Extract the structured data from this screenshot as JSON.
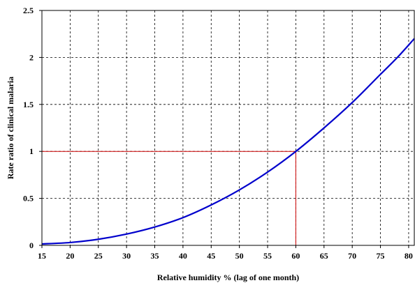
{
  "chart_data": {
    "type": "line",
    "title": "",
    "xlabel": "Relative humidity % (lag of one month)",
    "ylabel": "Rate ratio of clinical malaria",
    "xlim": [
      15,
      81
    ],
    "ylim": [
      0,
      2.5
    ],
    "x_ticks": [
      15,
      20,
      25,
      30,
      35,
      40,
      45,
      50,
      55,
      60,
      65,
      70,
      75,
      80
    ],
    "y_ticks": [
      0,
      0.5,
      1,
      1.5,
      2,
      2.5
    ],
    "x_tick_labels": [
      "15",
      "20",
      "25",
      "30",
      "35",
      "40",
      "45",
      "50",
      "55",
      "60",
      "65",
      "70",
      "75",
      "80"
    ],
    "y_tick_labels": [
      "0",
      "0.5",
      "1",
      "1.5",
      "2",
      "2.5"
    ],
    "grid": true,
    "grid_style": "dashed",
    "series": [
      {
        "color": "#0000cc",
        "x": [
          15,
          20,
          25,
          30,
          35,
          40,
          45,
          50,
          55,
          60,
          65,
          70,
          75,
          78,
          81
        ],
        "y": [
          0.015,
          0.03,
          0.065,
          0.12,
          0.195,
          0.295,
          0.43,
          0.59,
          0.78,
          1.0,
          1.25,
          1.52,
          1.82,
          2.0,
          2.2
        ]
      }
    ],
    "reference_lines": [
      {
        "color": "#cc0000",
        "from": [
          15,
          1
        ],
        "to": [
          60,
          1
        ]
      },
      {
        "color": "#cc0000",
        "from": [
          60,
          0
        ],
        "to": [
          60,
          1
        ]
      }
    ]
  }
}
